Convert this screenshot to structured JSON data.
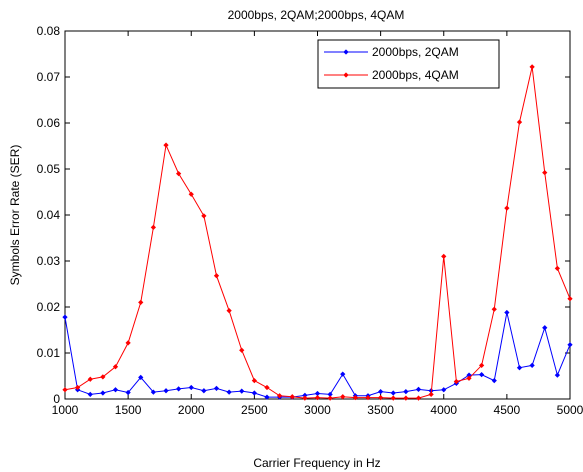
{
  "chart_data": {
    "type": "line",
    "title": "2000bps, 2QAM;2000bps, 4QAM",
    "xlabel": "Carrier Frequency in Hz",
    "ylabel": "Symbols Error Rate (SER)",
    "xlim": [
      1000,
      5000
    ],
    "ylim": [
      0,
      0.08
    ],
    "xticks": [
      1000,
      1500,
      2000,
      2500,
      3000,
      3500,
      4000,
      4500,
      5000
    ],
    "yticks": [
      0,
      0.01,
      0.02,
      0.03,
      0.04,
      0.05,
      0.06,
      0.07,
      0.08
    ],
    "xtick_labels": [
      "1000",
      "1500",
      "2000",
      "2500",
      "3000",
      "3500",
      "4000",
      "4500",
      "5000"
    ],
    "ytick_labels": [
      "0",
      "0.01",
      "0.02",
      "0.03",
      "0.04",
      "0.05",
      "0.06",
      "0.07",
      "0.08"
    ],
    "grid": false,
    "legend_position": "top-right",
    "x": [
      1000,
      1100,
      1200,
      1300,
      1400,
      1500,
      1600,
      1700,
      1800,
      1900,
      2000,
      2100,
      2200,
      2300,
      2400,
      2500,
      2600,
      2700,
      2800,
      2900,
      3000,
      3100,
      3200,
      3300,
      3400,
      3500,
      3600,
      3700,
      3800,
      3900,
      4000,
      4100,
      4200,
      4300,
      4400,
      4500,
      4600,
      4700,
      4800,
      4900,
      5000
    ],
    "series": [
      {
        "name": "2000bps, 2QAM",
        "color": "#0000ff",
        "values": [
          0.0178,
          0.002,
          0.001,
          0.0013,
          0.002,
          0.0014,
          0.0047,
          0.0015,
          0.0018,
          0.0022,
          0.0025,
          0.0018,
          0.0023,
          0.0015,
          0.0017,
          0.0013,
          0.0004,
          0.0004,
          0.0004,
          0.0008,
          0.0012,
          0.001,
          0.0054,
          0.0007,
          0.0007,
          0.0016,
          0.0013,
          0.0016,
          0.0021,
          0.0018,
          0.002,
          0.0034,
          0.0052,
          0.0053,
          0.004,
          0.0188,
          0.0068,
          0.0073,
          0.0155,
          0.0052,
          0.0118
        ]
      },
      {
        "name": "2000bps, 4QAM",
        "color": "#ff0000",
        "values": [
          0.002,
          0.0025,
          0.0043,
          0.0048,
          0.007,
          0.0122,
          0.021,
          0.0373,
          0.0552,
          0.049,
          0.0445,
          0.0398,
          0.0268,
          0.0192,
          0.0106,
          0.004,
          0.0025,
          0.0007,
          0.0005,
          0.0002,
          0.0003,
          0.0002,
          0.0005,
          0.0003,
          0.0003,
          0.0003,
          0.0002,
          0.0002,
          0.0002,
          0.001,
          0.031,
          0.0038,
          0.0045,
          0.0073,
          0.0195,
          0.0415,
          0.0602,
          0.0722,
          0.0492,
          0.0284,
          0.0218
        ]
      }
    ]
  }
}
